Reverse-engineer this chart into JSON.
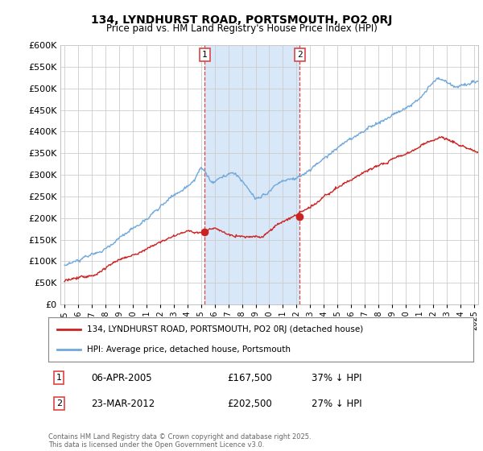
{
  "title": "134, LYNDHURST ROAD, PORTSMOUTH, PO2 0RJ",
  "subtitle": "Price paid vs. HM Land Registry's House Price Index (HPI)",
  "legend_entry1": "134, LYNDHURST ROAD, PORTSMOUTH, PO2 0RJ (detached house)",
  "legend_entry2": "HPI: Average price, detached house, Portsmouth",
  "annotation1_label": "1",
  "annotation1_date": "06-APR-2005",
  "annotation1_price": "£167,500",
  "annotation1_hpi": "37% ↓ HPI",
  "annotation2_label": "2",
  "annotation2_date": "23-MAR-2012",
  "annotation2_price": "£202,500",
  "annotation2_hpi": "27% ↓ HPI",
  "footnote": "Contains HM Land Registry data © Crown copyright and database right 2025.\nThis data is licensed under the Open Government Licence v3.0.",
  "ylim": [
    0,
    600000
  ],
  "yticks": [
    0,
    50000,
    100000,
    150000,
    200000,
    250000,
    300000,
    350000,
    400000,
    450000,
    500000,
    550000,
    600000
  ],
  "red_color": "#cc2222",
  "blue_color": "#6fa8dc",
  "vline_color": "#dd4444",
  "shade_color": "#d8e8f8",
  "background_color": "#ffffff",
  "plot_bg_color": "#ffffff",
  "grid_color": "#cccccc",
  "ann1_x": 2005.27,
  "ann2_x": 2012.22,
  "ann1_y_red": 167500,
  "ann2_y_red": 202500,
  "xmin": 1995,
  "xmax": 2025
}
